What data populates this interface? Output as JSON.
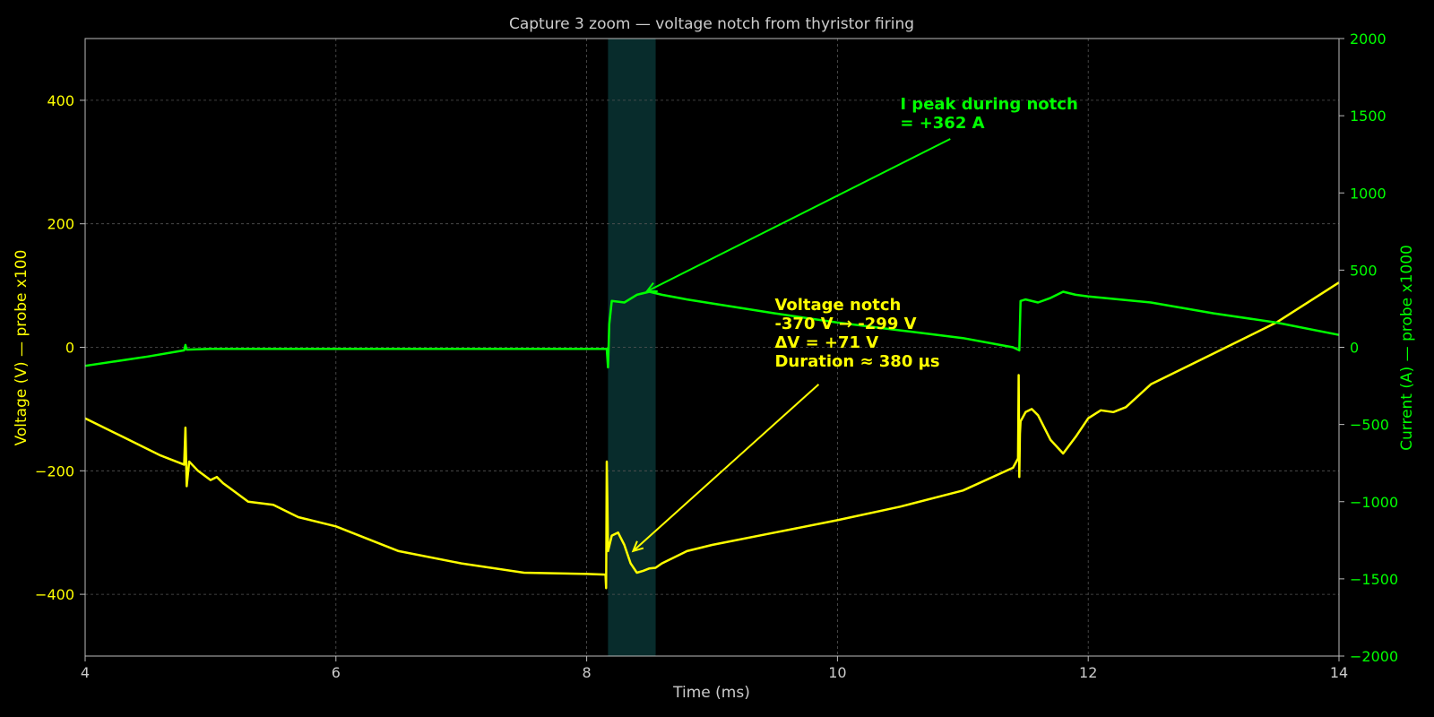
{
  "chart_data": {
    "type": "line",
    "title": "Capture 3 zoom — voltage notch from thyristor firing",
    "xlabel": "Time (ms)",
    "ylabel_left": "Voltage (V)  —  probe x100",
    "ylabel_right": "Current (A)  —  probe x1000",
    "xlim": [
      4,
      14
    ],
    "ylim_left": [
      -500,
      500
    ],
    "ylim_right": [
      -2000,
      2000
    ],
    "x_ticks": [
      4,
      6,
      8,
      10,
      12,
      14
    ],
    "y_ticks_left": [
      -400,
      -200,
      0,
      200,
      400
    ],
    "y_ticks_left_labels": [
      "−400",
      "−200",
      "0",
      "200",
      "400"
    ],
    "y_ticks_right": [
      -2000,
      -1500,
      -1000,
      -500,
      0,
      500,
      1000,
      1500,
      2000
    ],
    "y_ticks_right_labels": [
      "−2000",
      "−1500",
      "−1000",
      "−500",
      "0",
      "500",
      "1000",
      "1500",
      "2000"
    ],
    "grid": true,
    "highlight_span": {
      "x_start": 8.17,
      "x_end": 8.55,
      "color": "#0e4a4a"
    },
    "colors": {
      "voltage": "#ffff00",
      "current": "#00ff00",
      "background": "#000000",
      "axis_text": "#cccccc"
    },
    "series": [
      {
        "name": "Voltage",
        "axis": "left",
        "x": [
          4.0,
          4.3,
          4.6,
          4.79,
          4.8,
          4.81,
          4.83,
          4.9,
          5.0,
          5.05,
          5.1,
          5.2,
          5.3,
          5.5,
          5.7,
          6.0,
          6.5,
          7.0,
          7.5,
          8.0,
          8.15,
          8.155,
          8.16,
          8.165,
          8.17,
          8.2,
          8.25,
          8.3,
          8.35,
          8.4,
          8.45,
          8.5,
          8.55,
          8.6,
          8.8,
          9.0,
          9.5,
          10.0,
          10.5,
          11.0,
          11.4,
          11.44,
          11.445,
          11.45,
          11.455,
          11.46,
          11.5,
          11.55,
          11.6,
          11.7,
          11.8,
          11.9,
          12.0,
          12.1,
          12.2,
          12.3,
          12.5,
          13.0,
          13.5,
          14.0
        ],
        "y": [
          -115,
          -145,
          -175,
          -190,
          -130,
          -225,
          -185,
          -200,
          -215,
          -210,
          -220,
          -235,
          -250,
          -255,
          -275,
          -290,
          -330,
          -350,
          -365,
          -367,
          -368,
          -390,
          -185,
          -250,
          -330,
          -305,
          -300,
          -320,
          -350,
          -365,
          -362,
          -358,
          -357,
          -350,
          -330,
          -320,
          -300,
          -280,
          -258,
          -232,
          -195,
          -180,
          -45,
          -210,
          -140,
          -120,
          -105,
          -100,
          -110,
          -150,
          -172,
          -145,
          -115,
          -102,
          -105,
          -97,
          -60,
          -10,
          40,
          105
        ]
      },
      {
        "name": "Current",
        "axis": "right",
        "x": [
          4.0,
          4.5,
          4.79,
          4.8,
          4.81,
          5.0,
          6.0,
          7.0,
          8.0,
          8.16,
          8.17,
          8.18,
          8.2,
          8.3,
          8.4,
          8.5,
          8.6,
          8.8,
          9.5,
          10.0,
          10.5,
          11.0,
          11.4,
          11.45,
          11.46,
          11.5,
          11.6,
          11.7,
          11.8,
          11.9,
          12.0,
          12.5,
          13.0,
          13.5,
          14.0
        ],
        "y": [
          -120,
          -60,
          -20,
          15,
          -15,
          -10,
          -10,
          -10,
          -10,
          -10,
          -130,
          150,
          300,
          290,
          340,
          360,
          340,
          310,
          220,
          160,
          110,
          60,
          0,
          -20,
          300,
          310,
          290,
          320,
          360,
          340,
          330,
          290,
          220,
          160,
          80
        ]
      }
    ],
    "annotations": [
      {
        "lines": [
          "I peak during notch",
          "= +362 A"
        ],
        "color": "#00ff00",
        "text_x": 10.5,
        "text_y_right": 1540,
        "arrow_to_x": 8.48,
        "arrow_to_y_right": 362,
        "arrow_from_x": 10.9,
        "arrow_from_y_right": 1350
      },
      {
        "lines": [
          "Voltage notch",
          "-370 V → -299 V",
          "ΔV = +71 V",
          "Duration ≈ 380 µs"
        ],
        "color": "#ffff00",
        "text_x": 9.5,
        "text_y_left": 60,
        "arrow_to_x": 8.37,
        "arrow_to_y_left": -330,
        "arrow_from_x": 9.85,
        "arrow_from_y_left": -60
      }
    ]
  }
}
